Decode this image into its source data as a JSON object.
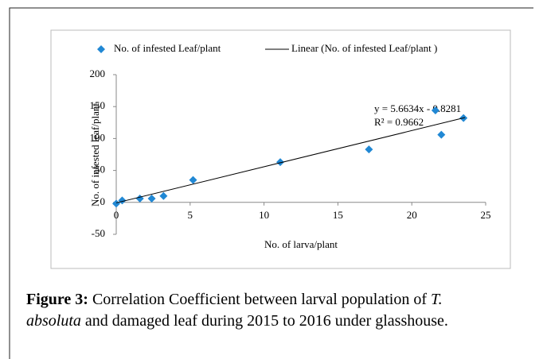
{
  "chart_data": {
    "type": "scatter",
    "xlabel": "No. of larva/plant",
    "ylabel": "No. of infested leaf/plant",
    "xlim": [
      0,
      25
    ],
    "xticks": [
      0,
      5,
      10,
      15,
      20,
      25
    ],
    "ylim": [
      -50,
      200
    ],
    "yticks": [
      -50,
      0,
      50,
      100,
      150,
      200
    ],
    "grid": false,
    "legend": "top",
    "series": [
      {
        "name": "No. of infested Leaf/plant",
        "color": "#2188d4",
        "x": [
          0,
          0.4,
          1.6,
          2.4,
          3.2,
          5.2,
          11.1,
          17.1,
          21.6,
          22.0,
          23.5
        ],
        "values": [
          -2,
          3,
          6,
          6,
          10,
          35,
          63,
          83,
          144,
          106,
          132
        ]
      },
      {
        "name": "Linear (No. of infested Leaf/plant )",
        "color": "#000000",
        "x": [
          0,
          23.6
        ],
        "values": [
          -0.8,
          132.8
        ]
      }
    ],
    "annotations": [
      "y = 5.6634x - 0.8281",
      "R² = 0.9662"
    ]
  },
  "caption": {
    "label": "Figure 3:",
    "lines": [
      [
        {
          "text": "Correlation Coefficient between larval population of ",
          "italic": false
        },
        {
          "text": "T.",
          "italic": true
        }
      ],
      [
        {
          "text": "absoluta",
          "italic": true
        },
        {
          "text": " and damaged leaf during 2015 to 2016 under glasshouse.",
          "italic": false
        }
      ]
    ]
  }
}
